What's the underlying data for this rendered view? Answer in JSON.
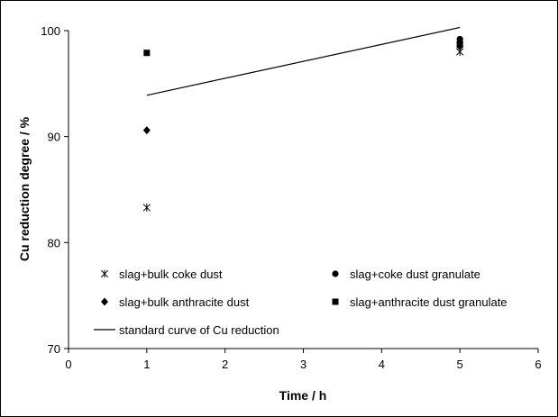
{
  "chart_data": {
    "type": "scatter",
    "title": "",
    "xlabel": "Time / h",
    "ylabel": "Cu reduction degree / %",
    "xlim": [
      0,
      6
    ],
    "ylim": [
      70,
      100
    ],
    "x_ticks": [
      "0",
      "1",
      "2",
      "3",
      "4",
      "5",
      "6"
    ],
    "y_ticks": [
      "70",
      "80",
      "90",
      "100"
    ],
    "grid": false,
    "legend_position": "bottom",
    "series": [
      {
        "name": "slag+bulk coke dust",
        "marker": "asterisk",
        "color": "#000000",
        "points": [
          {
            "x": 1,
            "y": 83.3
          },
          {
            "x": 5,
            "y": 98.0
          }
        ]
      },
      {
        "name": "slag+coke dust granulate",
        "marker": "circle",
        "color": "#000000",
        "points": [
          {
            "x": 5,
            "y": 99.2
          },
          {
            "x": 5,
            "y": 98.9
          }
        ]
      },
      {
        "name": "slag+bulk anthracite dust",
        "marker": "diamond",
        "color": "#000000",
        "points": [
          {
            "x": 1,
            "y": 90.6
          },
          {
            "x": 5,
            "y": 98.5
          }
        ]
      },
      {
        "name": "slag+anthracite dust granulate",
        "marker": "square",
        "color": "#000000",
        "points": [
          {
            "x": 1,
            "y": 97.9
          },
          {
            "x": 5,
            "y": 98.7
          }
        ]
      }
    ],
    "lines": [
      {
        "name": "standard curve of Cu reduction",
        "style": "solid",
        "color": "#000000",
        "points": [
          {
            "x": 1,
            "y": 93.9
          },
          {
            "x": 5,
            "y": 100.3
          }
        ]
      }
    ]
  }
}
